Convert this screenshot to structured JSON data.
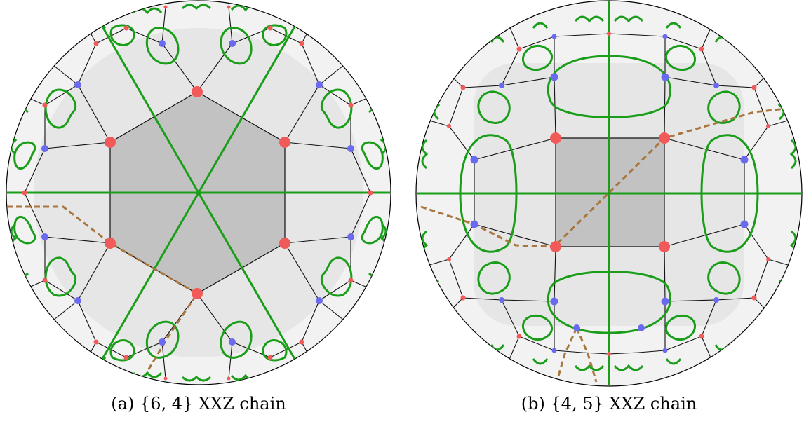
{
  "panels": [
    {
      "id": "a",
      "caption": "(a) {6, 4} XXZ chain"
    },
    {
      "id": "b",
      "caption": "(b) {4, 5} XXZ chain"
    }
  ],
  "colors": {
    "boundary": "#000000",
    "edge": "#111111",
    "center_cell": "#c2c2c2",
    "first_ring": "#e6e6e6",
    "outer_ring": "#f2f2f2",
    "red_node": "#f25a5a",
    "blue_node": "#6a6af0",
    "green_curve": "#1a9e1a",
    "dashed_path": "#a8763e"
  }
}
